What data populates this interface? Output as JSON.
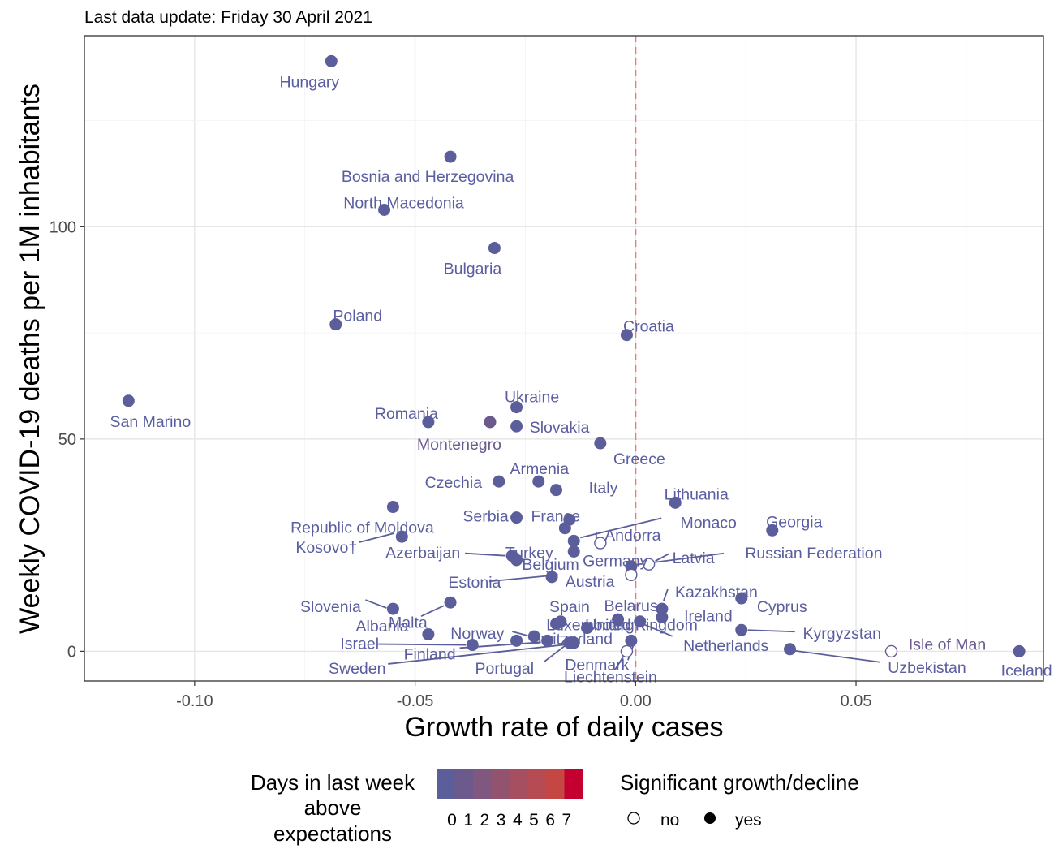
{
  "subtitle": "Last data update: Friday 30 April 2021",
  "chart_data": {
    "type": "scatter",
    "xlabel": "Growth rate of daily cases",
    "ylabel": "Weekly COVID-19 deaths per 1M inhabitants",
    "xlim": [
      -0.125,
      0.0925
    ],
    "ylim": [
      -7,
      145
    ],
    "x_ticks": [
      "-0.10",
      "-0.05",
      "0.00",
      "0.05"
    ],
    "x_tick_values": [
      -0.1,
      -0.05,
      0.0,
      0.05
    ],
    "y_ticks": [
      "0",
      "50",
      "100"
    ],
    "y_tick_values": [
      0,
      50,
      100
    ],
    "reference_line": {
      "x": 0.0,
      "style": "dashed",
      "color": "#f8766d"
    },
    "grid": true,
    "points": [
      {
        "label": "Hungary",
        "x": -0.069,
        "y": 139.0,
        "days": 0,
        "sig": "yes"
      },
      {
        "label": "Bosnia and Herzegovina",
        "x": -0.042,
        "y": 116.5,
        "days": 0,
        "sig": "yes"
      },
      {
        "label": "North Macedonia",
        "x": -0.057,
        "y": 104.0,
        "days": 0,
        "sig": "yes"
      },
      {
        "label": "Bulgaria",
        "x": -0.032,
        "y": 95.0,
        "days": 0,
        "sig": "yes"
      },
      {
        "label": "Poland",
        "x": -0.068,
        "y": 77.0,
        "days": 0,
        "sig": "yes"
      },
      {
        "label": "Croatia",
        "x": -0.002,
        "y": 74.5,
        "days": 0,
        "sig": "yes"
      },
      {
        "label": "San Marino",
        "x": -0.115,
        "y": 59.0,
        "days": 0,
        "sig": "yes"
      },
      {
        "label": "Ukraine",
        "x": -0.027,
        "y": 57.5,
        "days": 0,
        "sig": "yes"
      },
      {
        "label": "Romania",
        "x": -0.047,
        "y": 54.0,
        "days": 0,
        "sig": "yes"
      },
      {
        "label": "Montenegro",
        "x": -0.033,
        "y": 54.0,
        "days": 1,
        "sig": "yes"
      },
      {
        "label": "Slovakia",
        "x": -0.027,
        "y": 53.0,
        "days": 0,
        "sig": "yes"
      },
      {
        "label": "Greece",
        "x": -0.008,
        "y": 49.0,
        "days": 0,
        "sig": "yes"
      },
      {
        "label": "Czechia",
        "x": -0.031,
        "y": 40.0,
        "days": 0,
        "sig": "yes"
      },
      {
        "label": "Armenia",
        "x": -0.022,
        "y": 40.0,
        "days": 0,
        "sig": "yes"
      },
      {
        "label": "Italy",
        "x": -0.018,
        "y": 38.0,
        "days": 0,
        "sig": "yes"
      },
      {
        "label": "Lithuania",
        "x": 0.009,
        "y": 35.0,
        "days": 0,
        "sig": "yes"
      },
      {
        "label": "Republic of Moldova",
        "x": -0.055,
        "y": 34.0,
        "days": 0,
        "sig": "yes"
      },
      {
        "label": "Serbia",
        "x": -0.027,
        "y": 31.5,
        "days": 0,
        "sig": "yes"
      },
      {
        "label": "France",
        "x": -0.015,
        "y": 31.0,
        "days": 0,
        "sig": "yes"
      },
      {
        "label": "Turkey",
        "x": -0.016,
        "y": 29.0,
        "days": 0,
        "sig": "yes"
      },
      {
        "label": "Georgia",
        "x": 0.031,
        "y": 28.5,
        "days": 0,
        "sig": "yes"
      },
      {
        "label": "Kosovo†",
        "x": -0.053,
        "y": 27.0,
        "days": 0,
        "sig": "yes"
      },
      {
        "label": "Monaco",
        "x": -0.014,
        "y": 26.0,
        "days": 0,
        "sig": "yes"
      },
      {
        "label": "Andorra",
        "x": -0.008,
        "y": 25.5,
        "days": 0,
        "sig": "no"
      },
      {
        "label": "Germany",
        "x": -0.014,
        "y": 23.5,
        "days": 0,
        "sig": "yes"
      },
      {
        "label": "Azerbaijan",
        "x": -0.028,
        "y": 22.5,
        "days": 0,
        "sig": "yes"
      },
      {
        "label": "Belgium",
        "x": -0.027,
        "y": 21.5,
        "days": 0,
        "sig": "yes"
      },
      {
        "label": "Latvia",
        "x": 0.003,
        "y": 20.5,
        "days": 0,
        "sig": "no"
      },
      {
        "label": "Russian Federation",
        "x": -0.001,
        "y": 20.0,
        "days": 0,
        "sig": "yes"
      },
      {
        "label": "Estonia",
        "x": -0.001,
        "y": 18.0,
        "days": 0,
        "sig": "no"
      },
      {
        "label": "Austria",
        "x": -0.019,
        "y": 17.5,
        "days": 0,
        "sig": "yes"
      },
      {
        "label": "Kazakhstan",
        "x": 0.006,
        "y": 10.0,
        "days": 0,
        "sig": "yes"
      },
      {
        "label": "Cyprus",
        "x": 0.024,
        "y": 12.5,
        "days": 0,
        "sig": "yes"
      },
      {
        "label": "Slovenia",
        "x": -0.055,
        "y": 10.0,
        "days": 0,
        "sig": "yes"
      },
      {
        "label": "Albania",
        "x": -0.042,
        "y": 11.5,
        "days": 0,
        "sig": "yes"
      },
      {
        "label": "Luxembourg",
        "x": -0.018,
        "y": 6.5,
        "days": 0,
        "sig": "yes"
      },
      {
        "label": "Ireland",
        "x": 0.006,
        "y": 8.0,
        "days": 0,
        "sig": "yes"
      },
      {
        "label": "Spain",
        "x": -0.017,
        "y": 7.0,
        "days": 0,
        "sig": "yes"
      },
      {
        "label": "Belarus",
        "x": -0.004,
        "y": 7.5,
        "days": 0,
        "sig": "yes"
      },
      {
        "label": "Malta",
        "x": -0.047,
        "y": 4.0,
        "days": 0,
        "sig": "yes"
      },
      {
        "label": "Kyrgyzstan",
        "x": 0.024,
        "y": 5.0,
        "days": 0,
        "sig": "yes"
      },
      {
        "label": "Norway",
        "x": -0.023,
        "y": 3.5,
        "days": 0,
        "sig": "yes"
      },
      {
        "label": "Switzerland",
        "x": -0.027,
        "y": 2.5,
        "days": 0,
        "sig": "yes"
      },
      {
        "label": "United Kingdom",
        "x": -0.011,
        "y": 5.5,
        "days": 0,
        "sig": "yes"
      },
      {
        "label": "Netherlands",
        "x": 0.001,
        "y": 7.0,
        "days": 0,
        "sig": "yes"
      },
      {
        "label": "Israel",
        "x": -0.037,
        "y": 1.5,
        "days": 0,
        "sig": "yes"
      },
      {
        "label": "Finland",
        "x": -0.02,
        "y": 2.5,
        "days": 0,
        "sig": "yes"
      },
      {
        "label": "Sweden",
        "x": -0.014,
        "y": 2.0,
        "days": 0,
        "sig": "yes"
      },
      {
        "label": "Portugal",
        "x": -0.015,
        "y": 2.0,
        "days": 0,
        "sig": "yes"
      },
      {
        "label": "Liechtenstein",
        "x": -0.002,
        "y": 0.0,
        "days": 0,
        "sig": "no"
      },
      {
        "label": "Denmark",
        "x": -0.001,
        "y": 2.5,
        "days": 0,
        "sig": "yes"
      },
      {
        "label": "Uzbekistan",
        "x": 0.035,
        "y": 0.5,
        "days": 0,
        "sig": "yes"
      },
      {
        "label": "Isle of Man",
        "x": 0.058,
        "y": 0.0,
        "days": 1,
        "sig": "no"
      },
      {
        "label": "Iceland",
        "x": 0.087,
        "y": 0.0,
        "days": 0,
        "sig": "yes"
      }
    ],
    "legend": {
      "color_title": "Days in last week above expectations",
      "color_title_lines": [
        "Days in last week",
        "above",
        "expectations"
      ],
      "color_levels": [
        "0",
        "1",
        "2",
        "3",
        "4",
        "5",
        "6",
        "7"
      ],
      "colors": [
        "#5b5e9a",
        "#6d5a8c",
        "#80577e",
        "#92536f",
        "#a54f61",
        "#b74b53",
        "#c44744",
        "#c40030"
      ],
      "shape_title": "Significant growth/decline",
      "shape_levels": [
        "no",
        "yes"
      ],
      "placement": "bottom"
    }
  }
}
